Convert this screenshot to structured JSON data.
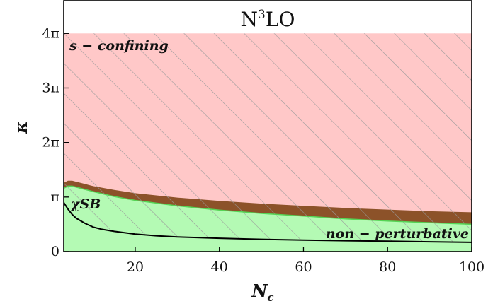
{
  "chart_data": {
    "type": "area",
    "title": "N³LO",
    "title_base": "N",
    "title_sup": "3",
    "title_rest": "LO",
    "xlabel": "N_c",
    "xlabel_main": "N",
    "xlabel_sub": "c",
    "ylabel": "κ",
    "xlim": [
      3,
      100
    ],
    "ylim": [
      0,
      4.6
    ],
    "y_unit": "π",
    "x_ticks": [
      20,
      40,
      60,
      80,
      100
    ],
    "x_tick_labels": [
      "20",
      "40",
      "60",
      "80",
      "100"
    ],
    "y_ticks": [
      0,
      1,
      2,
      3,
      4
    ],
    "y_tick_labels": [
      "0",
      "π",
      "2π",
      "3π",
      "4π"
    ],
    "grid": false,
    "legend": "none",
    "regions": [
      {
        "name": "s − confining",
        "color": "#ffc8c8",
        "hatched": true,
        "description_x": [
          3,
          100
        ]
      },
      {
        "name": "brown band",
        "color": "#8c5229",
        "x": [
          3,
          4,
          5,
          6,
          8,
          10,
          15,
          20,
          30,
          40,
          50,
          60,
          70,
          80,
          90,
          100
        ],
        "upper": [
          1.26,
          1.3,
          1.3,
          1.28,
          1.24,
          1.2,
          1.13,
          1.07,
          0.99,
          0.93,
          0.88,
          0.84,
          0.8,
          0.77,
          0.74,
          0.72
        ],
        "lower": [
          1.16,
          1.2,
          1.2,
          1.18,
          1.14,
          1.1,
          1.01,
          0.94,
          0.84,
          0.76,
          0.7,
          0.65,
          0.6,
          0.56,
          0.53,
          0.5
        ]
      },
      {
        "name": "non − perturbative",
        "color": "#b4fab4",
        "hatched_above_line": true,
        "x": [
          3,
          4,
          5,
          6,
          8,
          10,
          15,
          20,
          30,
          40,
          50,
          60,
          70,
          80,
          90,
          100
        ],
        "upper": [
          1.16,
          1.2,
          1.2,
          1.18,
          1.14,
          1.1,
          1.01,
          0.94,
          0.84,
          0.76,
          0.7,
          0.65,
          0.6,
          0.56,
          0.53,
          0.5
        ]
      }
    ],
    "series": [
      {
        "name": "χSB",
        "color": "#000000",
        "x": [
          3,
          4,
          5,
          6,
          8,
          10,
          12,
          15,
          20,
          25,
          30,
          40,
          50,
          60,
          70,
          80,
          90,
          100
        ],
        "y": [
          0.9,
          0.78,
          0.68,
          0.61,
          0.52,
          0.45,
          0.41,
          0.37,
          0.32,
          0.29,
          0.27,
          0.245,
          0.225,
          0.21,
          0.2,
          0.19,
          0.18,
          0.17
        ]
      }
    ],
    "annotations": {
      "upper_region": "s − confining",
      "chi_label": "χSB",
      "lower_region": "non − perturbative"
    }
  }
}
